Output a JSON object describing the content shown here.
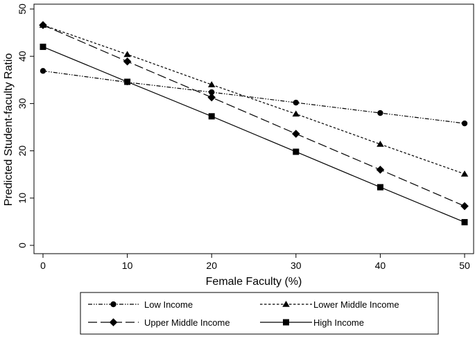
{
  "chart_data": {
    "type": "line",
    "title": "",
    "xlabel": "Female Faculty (%)",
    "ylabel": "Predicted Student-faculty Ratio",
    "x": [
      0,
      10,
      20,
      30,
      40,
      50
    ],
    "xlim": [
      0,
      50
    ],
    "ylim": [
      0,
      50
    ],
    "xticks": [
      0,
      10,
      20,
      30,
      40,
      50
    ],
    "yticks": [
      0,
      10,
      20,
      30,
      40,
      50
    ],
    "grid": false,
    "legend_position": "bottom",
    "series": [
      {
        "name": "Low Income",
        "marker": "circle",
        "dash": "dash-dot-dot",
        "values": [
          36.9,
          34.5,
          32.4,
          30.2,
          28.0,
          25.8
        ]
      },
      {
        "name": "Lower Middle Income",
        "marker": "triangle",
        "dash": "short-dash",
        "values": [
          46.6,
          40.4,
          34.0,
          27.8,
          21.4,
          15.1
        ]
      },
      {
        "name": "Upper Middle Income",
        "marker": "diamond",
        "dash": "long-dash",
        "values": [
          46.6,
          38.9,
          31.3,
          23.6,
          16.0,
          8.3
        ]
      },
      {
        "name": "High Income",
        "marker": "square",
        "dash": "solid",
        "values": [
          42.0,
          34.6,
          27.3,
          19.8,
          12.3,
          4.9
        ]
      }
    ]
  }
}
